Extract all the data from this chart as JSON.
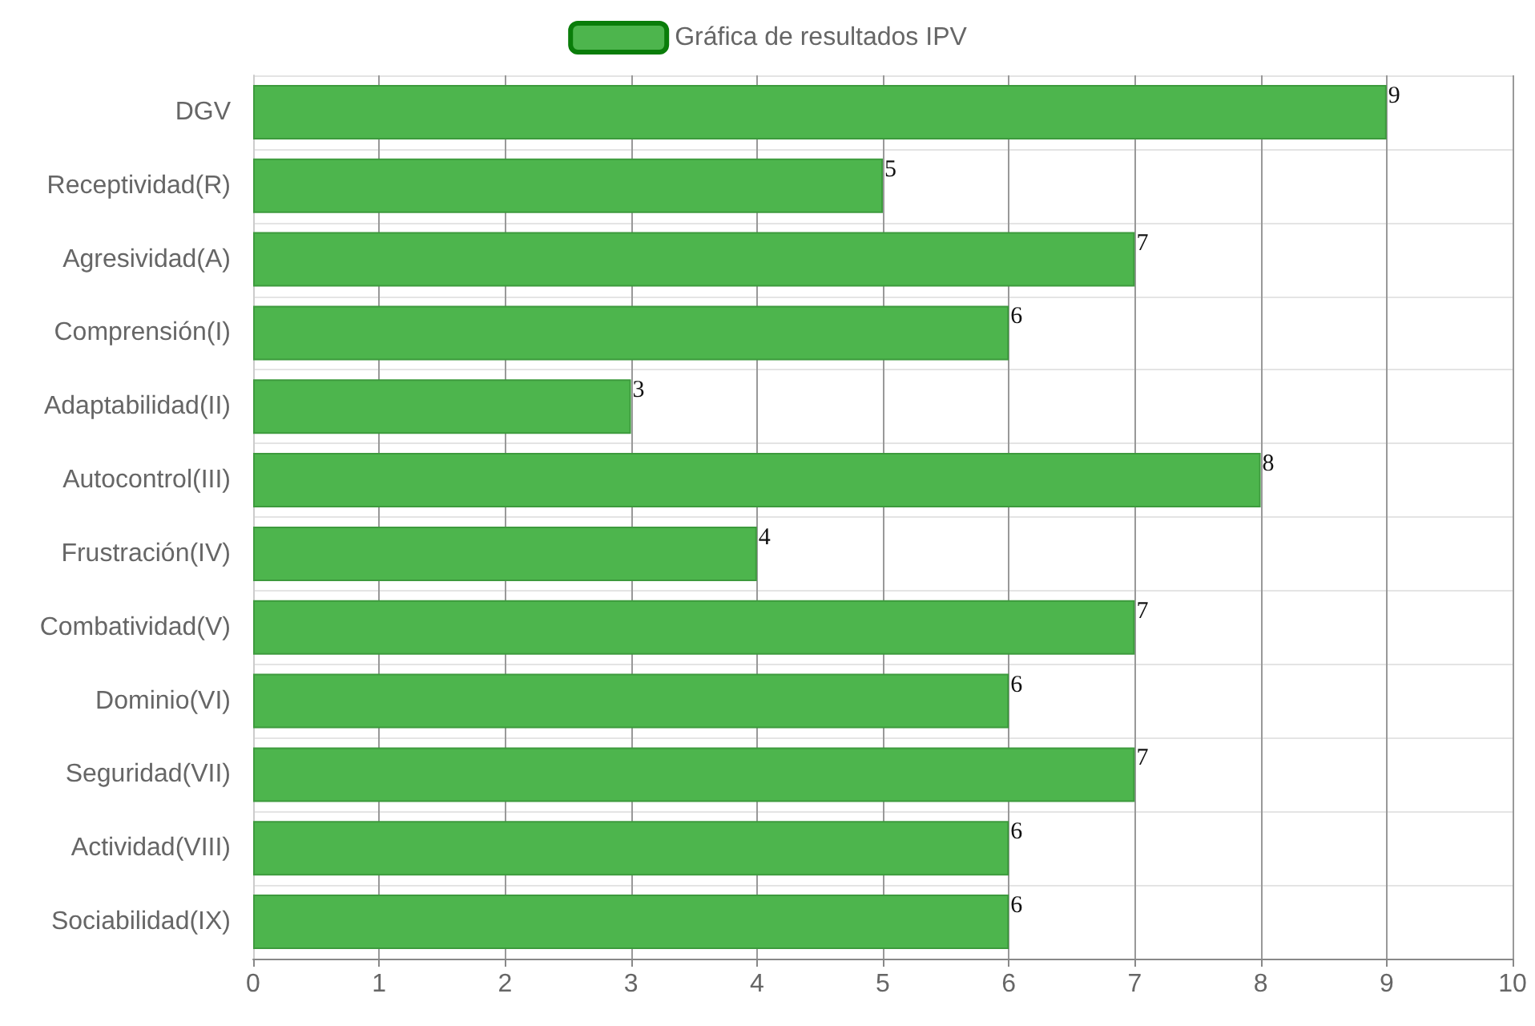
{
  "chart_data": {
    "type": "bar",
    "orientation": "horizontal",
    "categories": [
      "DGV",
      "Receptividad(R)",
      "Agresividad(A)",
      "Comprensión(I)",
      "Adaptabilidad(II)",
      "Autocontrol(III)",
      "Frustración(IV)",
      "Combatividad(V)",
      "Dominio(VI)",
      "Seguridad(VII)",
      "Actividad(VIII)",
      "Sociabilidad(IX)"
    ],
    "series": [
      {
        "name": "Gráfica de resultados IPV",
        "color": "#4db54d",
        "values": [
          9,
          5,
          7,
          6,
          3,
          8,
          4,
          7,
          6,
          7,
          6,
          6
        ]
      }
    ],
    "xlim": [
      0,
      10
    ],
    "xticks": [
      0,
      1,
      2,
      3,
      4,
      5,
      6,
      7,
      8,
      9,
      10
    ],
    "grid": true,
    "legend": "top",
    "data_labels": true
  }
}
